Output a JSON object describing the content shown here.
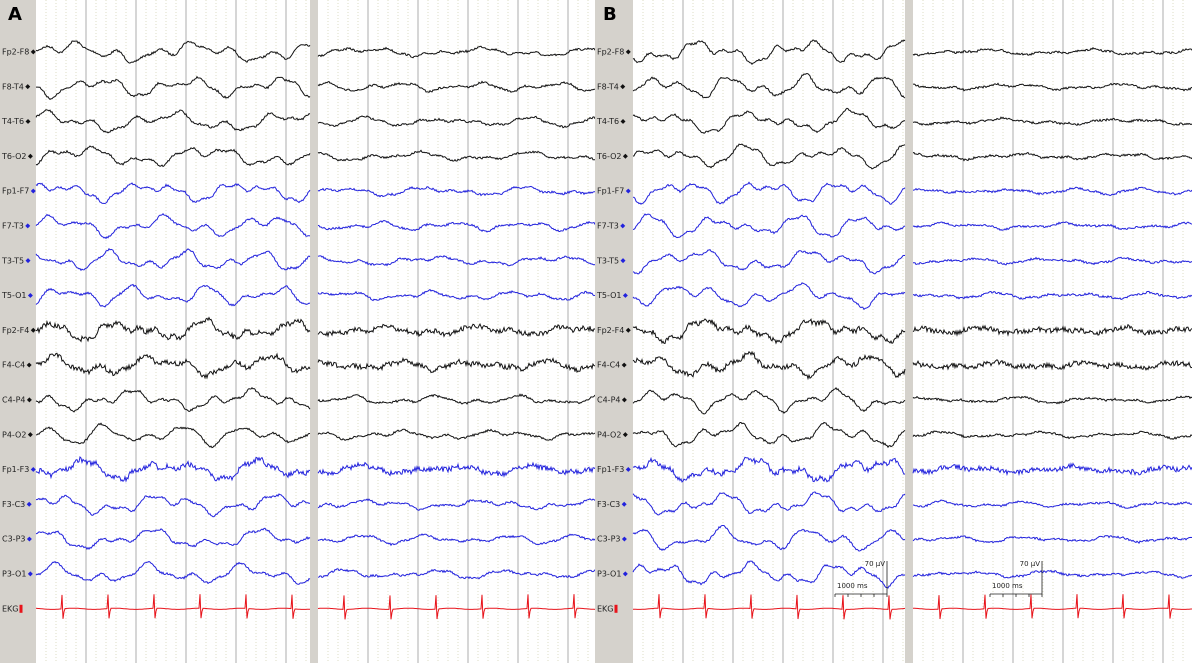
{
  "panels": [
    {
      "label": "A",
      "channels": [
        "Fp2-F8",
        "F8-T4",
        "T4-T6",
        "T6-O2",
        "Fp1-F7",
        "F7-T3",
        "T3-T5",
        "T5-O1",
        "Fp2-F4",
        "F4-C4",
        "C4-P4",
        "P4-O2",
        "Fp1-F3",
        "F3-C3",
        "C3-P3",
        "P3-O1",
        "EKG"
      ]
    },
    {
      "label": "B",
      "channels": [
        "Fp2-F8",
        "F8-T4",
        "T4-T6",
        "T6-O2",
        "Fp1-F7",
        "F7-T3",
        "T3-T5",
        "T5-O1",
        "Fp2-F4",
        "F4-C4",
        "C4-P4",
        "P4-O2",
        "Fp1-F3",
        "F3-C3",
        "C3-P3",
        "P3-O1",
        "EKG"
      ],
      "scale_bars": [
        {
          "voltage": "70 µV",
          "time": "1000 ms"
        },
        {
          "voltage": "70 µV",
          "time": "1000 ms"
        }
      ]
    }
  ]
}
